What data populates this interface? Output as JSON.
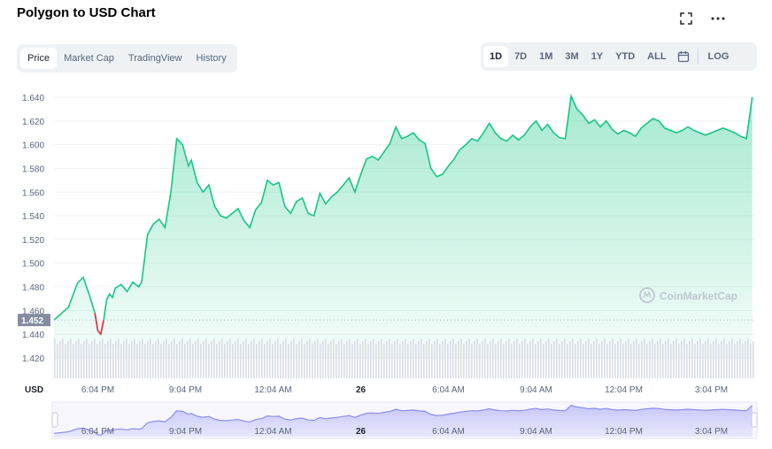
{
  "title": "Polygon to USD Chart",
  "tabs": [
    {
      "label": "Price",
      "active": true
    },
    {
      "label": "Market Cap",
      "active": false
    },
    {
      "label": "TradingView",
      "active": false
    },
    {
      "label": "History",
      "active": false
    }
  ],
  "ranges": [
    {
      "label": "1D",
      "active": true
    },
    {
      "label": "7D",
      "active": false
    },
    {
      "label": "1M",
      "active": false
    },
    {
      "label": "3M",
      "active": false
    },
    {
      "label": "1Y",
      "active": false
    },
    {
      "label": "YTD",
      "active": false
    },
    {
      "label": "ALL",
      "active": false
    }
  ],
  "log_label": "LOG",
  "icons": {
    "fullscreen": "fullscreen-icon",
    "more": "more-icon",
    "calendar": "calendar-icon"
  },
  "watermark": "CoinMarketCap",
  "colors": {
    "line_up": "#16c784",
    "line_down": "#ea3943",
    "area_top": "#16c784",
    "navigator": "#8c8cf0"
  },
  "chart_data": {
    "type": "area",
    "y_unit": "USD",
    "ylim": [
      1.41,
      1.645
    ],
    "y_ticks": [
      "1.640",
      "1.620",
      "1.600",
      "1.580",
      "1.560",
      "1.540",
      "1.520",
      "1.500",
      "1.480",
      "1.460",
      "1.440",
      "1.420"
    ],
    "x_ticks": [
      "6:04 PM",
      "9:04 PM",
      "12:04 AM",
      "26",
      "6:04 AM",
      "9:04 AM",
      "12:04 PM",
      "3:04 PM"
    ],
    "bold_x_tick": "26",
    "current_price_label": "1.452",
    "baseline": 1.452,
    "grid": true,
    "x_hours": [
      0,
      0.5,
      0.8,
      1.0,
      1.2,
      1.4,
      1.5,
      1.6,
      1.7,
      1.8,
      1.9,
      2.0,
      2.1,
      2.3,
      2.5,
      2.7,
      2.9,
      3.0,
      3.2,
      3.4,
      3.6,
      3.8,
      4.0,
      4.2,
      4.4,
      4.6,
      4.7,
      4.9,
      5.1,
      5.3,
      5.5,
      5.7,
      5.9,
      6.1,
      6.3,
      6.5,
      6.7,
      6.9,
      7.1,
      7.3,
      7.5,
      7.7,
      7.9,
      8.1,
      8.3,
      8.5,
      8.7,
      8.9,
      9.1,
      9.3,
      9.5,
      9.7,
      9.9,
      10.1,
      10.3,
      10.5,
      10.7,
      10.9,
      11.1,
      11.3,
      11.5,
      11.7,
      11.9,
      12.1,
      12.3,
      12.5,
      12.7,
      12.9,
      13.1,
      13.3,
      13.5,
      13.7,
      13.9,
      14.1,
      14.3,
      14.5,
      14.7,
      14.9,
      15.1,
      15.3,
      15.5,
      15.7,
      15.9,
      16.1,
      16.3,
      16.5,
      16.7,
      16.9,
      17.1,
      17.3,
      17.5,
      17.7,
      17.9,
      18.1,
      18.3,
      18.5,
      18.7,
      18.9,
      19.1,
      19.3,
      19.5,
      19.7,
      19.9,
      20.1,
      20.3,
      20.5,
      20.7,
      20.9,
      21.1,
      21.3,
      21.5,
      21.7,
      21.9,
      22.1,
      22.3,
      22.5,
      22.7,
      22.9,
      23.1,
      23.3,
      23.5,
      23.7,
      23.9
    ],
    "values": [
      1.452,
      1.463,
      1.483,
      1.488,
      1.474,
      1.458,
      1.443,
      1.44,
      1.452,
      1.469,
      1.474,
      1.471,
      1.479,
      1.482,
      1.476,
      1.484,
      1.48,
      1.484,
      1.524,
      1.533,
      1.537,
      1.53,
      1.56,
      1.605,
      1.6,
      1.582,
      1.587,
      1.568,
      1.56,
      1.566,
      1.548,
      1.54,
      1.538,
      1.542,
      1.546,
      1.536,
      1.53,
      1.545,
      1.551,
      1.57,
      1.566,
      1.568,
      1.548,
      1.542,
      1.552,
      1.555,
      1.542,
      1.54,
      1.559,
      1.55,
      1.556,
      1.56,
      1.566,
      1.572,
      1.56,
      1.575,
      1.588,
      1.59,
      1.587,
      1.594,
      1.601,
      1.615,
      1.605,
      1.607,
      1.61,
      1.604,
      1.601,
      1.58,
      1.573,
      1.575,
      1.582,
      1.588,
      1.596,
      1.6,
      1.605,
      1.603,
      1.61,
      1.618,
      1.61,
      1.605,
      1.603,
      1.608,
      1.604,
      1.608,
      1.615,
      1.62,
      1.612,
      1.617,
      1.61,
      1.606,
      1.605,
      1.641,
      1.63,
      1.625,
      1.618,
      1.621,
      1.615,
      1.62,
      1.613,
      1.609,
      1.612,
      1.61,
      1.607,
      1.614,
      1.618,
      1.622,
      1.62,
      1.614,
      1.612,
      1.61,
      1.612,
      1.615,
      1.612,
      1.61,
      1.608,
      1.61,
      1.612,
      1.614,
      1.612,
      1.61,
      1.607,
      1.605,
      1.64
    ]
  }
}
